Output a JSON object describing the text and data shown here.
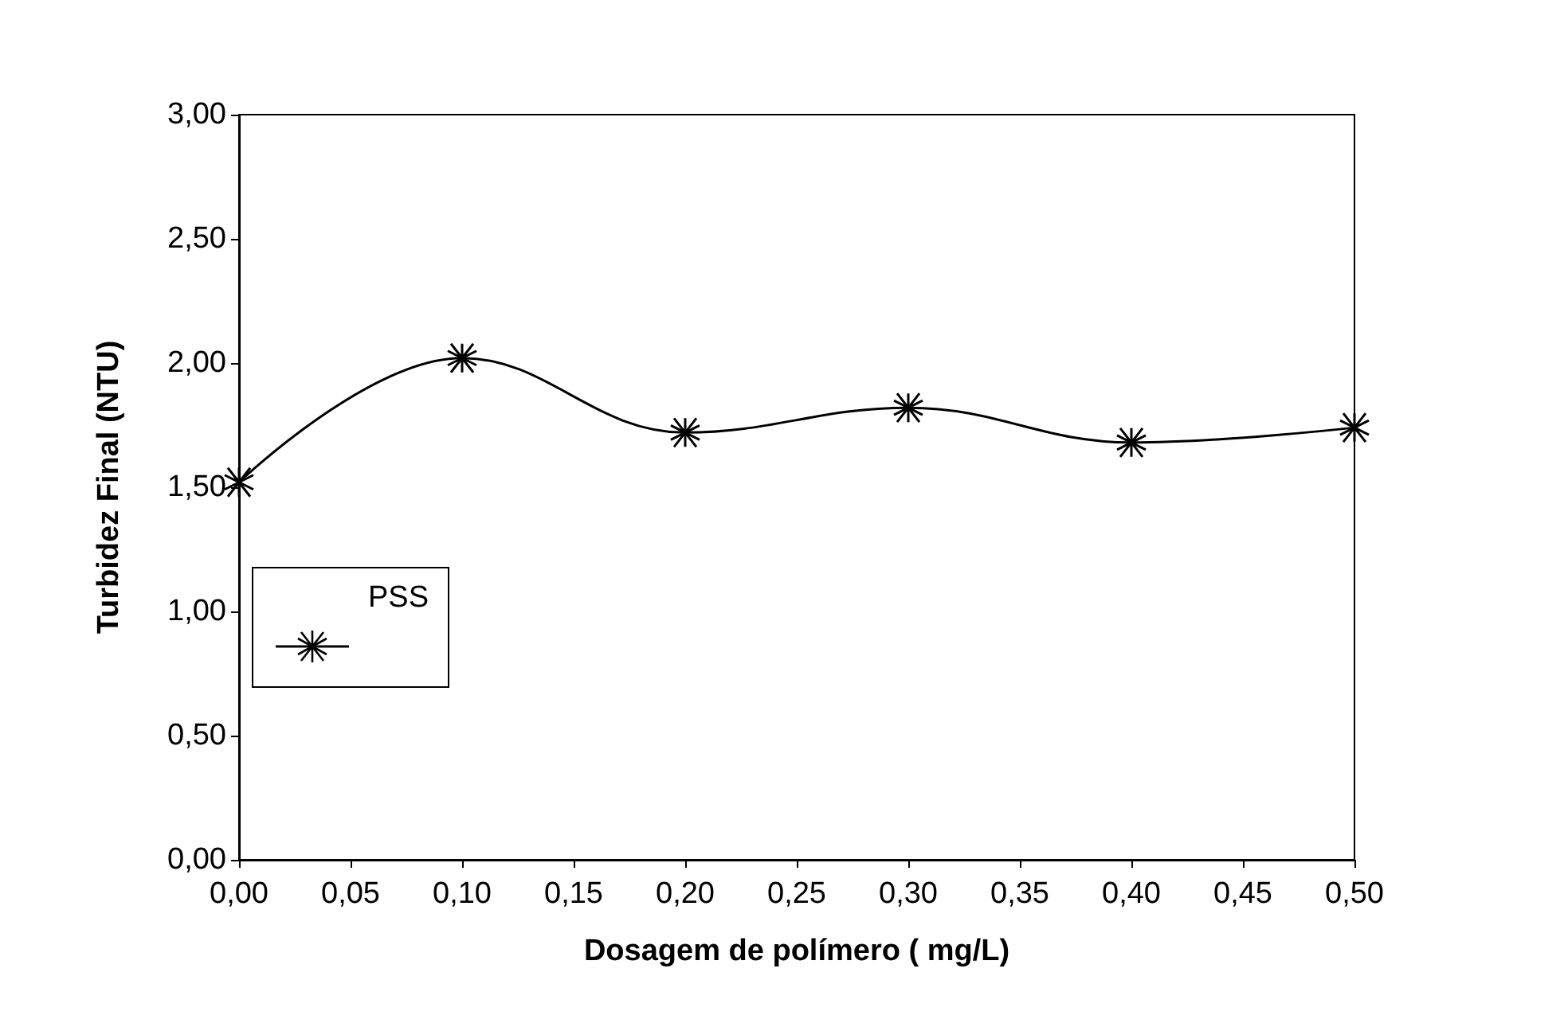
{
  "chart_data": {
    "type": "line",
    "xlabel": "Dosagem de polímero ( mg/L)",
    "ylabel": "Turbidez Final (NTU)",
    "annotations": [
      "PSS"
    ],
    "marker": "cross",
    "line_style": "solid",
    "grid": false,
    "x": [
      0,
      0.1,
      0.2,
      0.3,
      0.4,
      0.5
    ],
    "series": [
      {
        "color": "#000000",
        "values": [
          1.52,
          2.02,
          1.72,
          1.82,
          1.68,
          1.74
        ]
      }
    ],
    "xlim": [
      0,
      0.5
    ],
    "xticks": [
      {
        "value": 0,
        "label": "0,00"
      },
      {
        "value": 0.05,
        "label": "0,05"
      },
      {
        "value": 0.1,
        "label": "0,10"
      },
      {
        "value": 0.15,
        "label": "0,15"
      },
      {
        "value": 0.2,
        "label": "0,20"
      },
      {
        "value": 0.25,
        "label": "0,25"
      },
      {
        "value": 0.3,
        "label": "0,30"
      },
      {
        "value": 0.35,
        "label": "0,35"
      },
      {
        "value": 0.4,
        "label": "0,40"
      },
      {
        "value": 0.45,
        "label": "0,45"
      },
      {
        "value": 0.5,
        "label": "0,50"
      }
    ],
    "ylim": [
      0,
      3
    ],
    "yticks": [
      {
        "value": 0,
        "label": "0,00"
      },
      {
        "value": 0.5,
        "label": "0,50"
      },
      {
        "value": 1,
        "label": "1,00"
      },
      {
        "value": 1.5,
        "label": "1,50"
      },
      {
        "value": 2,
        "label": "2,00"
      },
      {
        "value": 2.5,
        "label": "2,50"
      },
      {
        "value": 3,
        "label": "3,00"
      }
    ]
  }
}
